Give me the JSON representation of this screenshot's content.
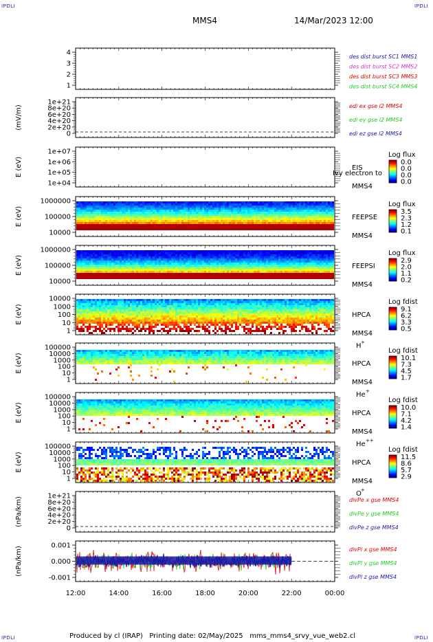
{
  "header": {
    "corner_label": "IPDLI",
    "spacecraft": "MMS4",
    "datetime": "14/Mar/2023 12:00"
  },
  "footer": {
    "credit": "Produced by cl (IRAP)   Printing date: 02/May/2025   mms_mms4_srvy_vue_web2.cl"
  },
  "colors": {
    "blue": "#1a1aa8",
    "magenta": "#cc33cc",
    "red": "#e00000",
    "green": "#22cc22"
  },
  "chart_data": [
    {
      "id": "p1",
      "type": "line",
      "yticks": [
        "4",
        "3",
        "2",
        "1"
      ],
      "legend": [
        {
          "text": "des dist burst SC1 MMS1",
          "color": "blue"
        },
        {
          "text": "des dist burst SC2 MMS2",
          "color": "magenta"
        },
        {
          "text": "des dist burst SC3 MMS3",
          "color": "red"
        },
        {
          "text": "des dist burst SC4 MMS4",
          "color": "green"
        }
      ]
    },
    {
      "id": "p2",
      "type": "line",
      "ylabel": "(mV/m)",
      "yticks": [
        "1e+21",
        "8e+20",
        "6e+20",
        "4e+20",
        "2e+20",
        "0"
      ],
      "legend": [
        {
          "text": "edi ex gse l2 MMS4",
          "color": "red"
        },
        {
          "text": "edi ey gse l2 MMS4",
          "color": "green"
        },
        {
          "text": "edi ez gse l2 MMS4",
          "color": "blue"
        }
      ]
    },
    {
      "id": "p3",
      "type": "heatmap",
      "ylabel": "E (eV)",
      "yticks": [
        "1e+07",
        "1e+06",
        "1e+05",
        "1e+04"
      ],
      "instrument": [
        "EIS",
        "MMS4"
      ],
      "overlay_label": "Ivy electron to",
      "colorbar": {
        "title": "Log flux",
        "ticks": [
          "0.0",
          "0.0",
          "0.0",
          "0.0"
        ]
      }
    },
    {
      "id": "p4",
      "type": "heatmap",
      "ylabel": "E (eV)",
      "yticks": [
        "1000000",
        "100000",
        "10000"
      ],
      "instrument": [
        "FEEPSE",
        "MMS4"
      ],
      "colorbar": {
        "title": "Log flux",
        "ticks": [
          "3.5",
          "2.3",
          "1.2",
          "0.1"
        ]
      }
    },
    {
      "id": "p5",
      "type": "heatmap",
      "ylabel": "E (eV)",
      "yticks": [
        "1000000",
        "100000",
        "10000"
      ],
      "instrument": [
        "FEEPSI",
        "MMS4"
      ],
      "colorbar": {
        "title": "Log flux",
        "ticks": [
          "2.9",
          "2.0",
          "1.1",
          "0.2"
        ]
      }
    },
    {
      "id": "p6",
      "type": "heatmap",
      "ylabel": "E (eV)",
      "yticks": [
        "10000",
        "1000",
        "100",
        "10",
        "1"
      ],
      "instrument": [
        "HPCA",
        "MMS4",
        "H",
        "+"
      ],
      "colorbar": {
        "title": "Log fdist",
        "ticks": [
          "9.1",
          "6.2",
          "3.3",
          "0.5"
        ]
      }
    },
    {
      "id": "p7",
      "type": "heatmap",
      "ylabel": "E (eV)",
      "yticks": [
        "100000",
        "10000",
        "1000",
        "100",
        "10",
        "1"
      ],
      "instrument": [
        "HPCA",
        "MMS4",
        "He",
        "+"
      ],
      "colorbar": {
        "title": "Log fdist",
        "ticks": [
          "10.1",
          "7.3",
          "4.5",
          "1.7"
        ]
      }
    },
    {
      "id": "p8",
      "type": "heatmap",
      "ylabel": "E (eV)",
      "yticks": [
        "100000",
        "10000",
        "1000",
        "100",
        "10",
        "1"
      ],
      "instrument": [
        "HPCA",
        "MMS4",
        "He",
        "++"
      ],
      "colorbar": {
        "title": "Log fdist",
        "ticks": [
          "10.0",
          "7.1",
          "4.2",
          "1.4"
        ]
      }
    },
    {
      "id": "p9",
      "type": "heatmap",
      "ylabel": "E (eV)",
      "yticks": [
        "100000",
        "10000",
        "1000",
        "100",
        "10",
        "1"
      ],
      "instrument": [
        "HPCA",
        "MMS4",
        "O",
        "+"
      ],
      "colorbar": {
        "title": "Log fdist",
        "ticks": [
          "11.5",
          "8.6",
          "5.7",
          "2.9"
        ]
      }
    },
    {
      "id": "p10",
      "type": "line",
      "ylabel": "(nPa/km)",
      "yticks": [
        "1e+21",
        "8e+20",
        "6e+20",
        "4e+20",
        "2e+20",
        "0"
      ],
      "legend": [
        {
          "text": "divPe x gse MMS4",
          "color": "red"
        },
        {
          "text": "divPe y gse MMS4",
          "color": "green"
        },
        {
          "text": "divPe z gse MMS4",
          "color": "blue"
        }
      ]
    },
    {
      "id": "p11",
      "type": "line",
      "ylabel": "(nPa/km)",
      "yticks": [
        "0.001",
        "0.000",
        "-0.001"
      ],
      "legend": [
        {
          "text": "divPi x gse MMS4",
          "color": "red"
        },
        {
          "text": "divPi y gse MMS4",
          "color": "green"
        },
        {
          "text": "divPi z gse MMS4",
          "color": "blue"
        }
      ]
    }
  ],
  "x_axis": {
    "ticks": [
      "12:00",
      "14:00",
      "16:00",
      "18:00",
      "20:00",
      "22:00",
      "00:00"
    ],
    "range": [
      "12:00",
      "00:00"
    ],
    "data_end": "22:00"
  }
}
